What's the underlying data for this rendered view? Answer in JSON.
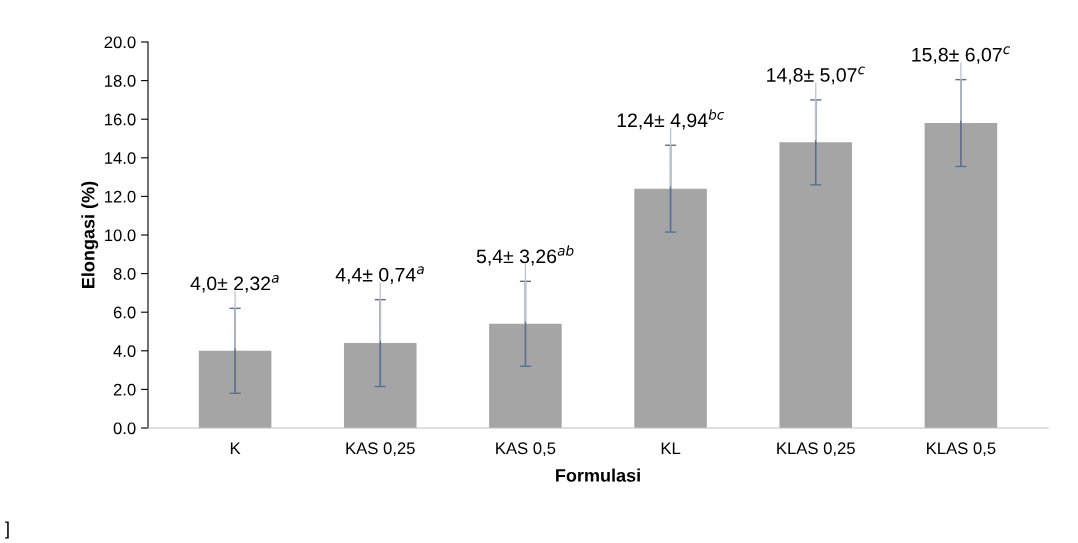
{
  "chart_data": {
    "type": "bar",
    "xlabel": "Formulasi",
    "ylabel": "Elongasi (%)",
    "categories": [
      "K",
      "KAS 0,25",
      "KAS 0,5",
      "KL",
      "KLAS 0,25",
      "KLAS 0,5"
    ],
    "values": [
      4.0,
      4.4,
      5.4,
      12.4,
      14.8,
      15.8
    ],
    "errors": [
      2.2,
      2.25,
      2.2,
      2.25,
      2.2,
      2.25
    ],
    "value_labels": [
      "4,0± 2,32$^{a}$",
      "4,4± 0,74$^{a}$",
      "5,4± 3,26$^{ab}$",
      "12,4± 4,94$^{bc}$",
      "14,8± 5,07$^{c}$",
      "15,8± 6,07$^{c}$"
    ],
    "color": "#a5a5a5",
    "ylim": [
      0,
      20
    ],
    "yticks": [
      {
        "value": 0,
        "label": "0.0"
      },
      {
        "value": 2,
        "label": "2.0"
      },
      {
        "value": 4,
        "label": "4.0"
      },
      {
        "value": 6,
        "label": "6.0"
      },
      {
        "value": 8,
        "label": "8.0"
      },
      {
        "value": 10,
        "label": "10.0"
      },
      {
        "value": 12,
        "label": "12.0"
      },
      {
        "value": 14,
        "label": "14.0"
      },
      {
        "value": 16,
        "label": "16.0"
      },
      {
        "value": 18,
        "label": "18.0"
      },
      {
        "value": 20,
        "label": "20.0"
      }
    ],
    "grid": false,
    "legend": false,
    "annotations": [
      "]"
    ]
  }
}
